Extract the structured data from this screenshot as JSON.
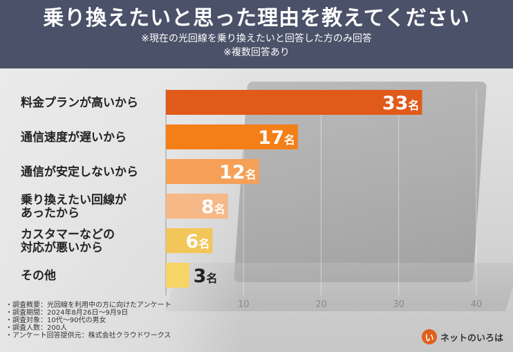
{
  "header": {
    "title": "乗り換えたいと思った理由を教えてください",
    "subtitle1": "※現在の光回線を乗り換えたいと回答した方のみ回答",
    "subtitle2": "※複数回答あり"
  },
  "chart_data": {
    "type": "bar",
    "orientation": "horizontal",
    "title": "乗り換えたいと思った理由を教えてください",
    "categories": [
      [
        "料金プランが高いから"
      ],
      [
        "通信速度が遅いから"
      ],
      [
        "通信が安定しないから"
      ],
      [
        "乗り換えたい回線が",
        "あったから"
      ],
      [
        "カスタマーなどの",
        "対応が悪いから"
      ],
      [
        "その他"
      ]
    ],
    "values": [
      33,
      17,
      12,
      8,
      6,
      3
    ],
    "unit": "名",
    "xlim": [
      0,
      40
    ],
    "xticks": [
      10,
      20,
      30,
      40
    ],
    "colors": [
      "#e05a1a",
      "#f47f17",
      "#f5a056",
      "#f7b887",
      "#f2c658",
      "#f6d466"
    ],
    "label_colors": [
      "#ffffff",
      "#ffffff",
      "#ffffff",
      "#ffffff",
      "#ffffff",
      "#222222"
    ],
    "grid": true
  },
  "notes": [
    "・調査概要：光回線を利用中の方に向けたアンケート",
    "・調査期間：2024年8月26日～9月9日",
    "・調査対象：10代～90代の男女",
    "・調査人数：200人",
    "・アンケート回答提供元：株式会社クラウドワークス"
  ],
  "logo": {
    "mark": "い",
    "text": "ネットのいろは"
  }
}
